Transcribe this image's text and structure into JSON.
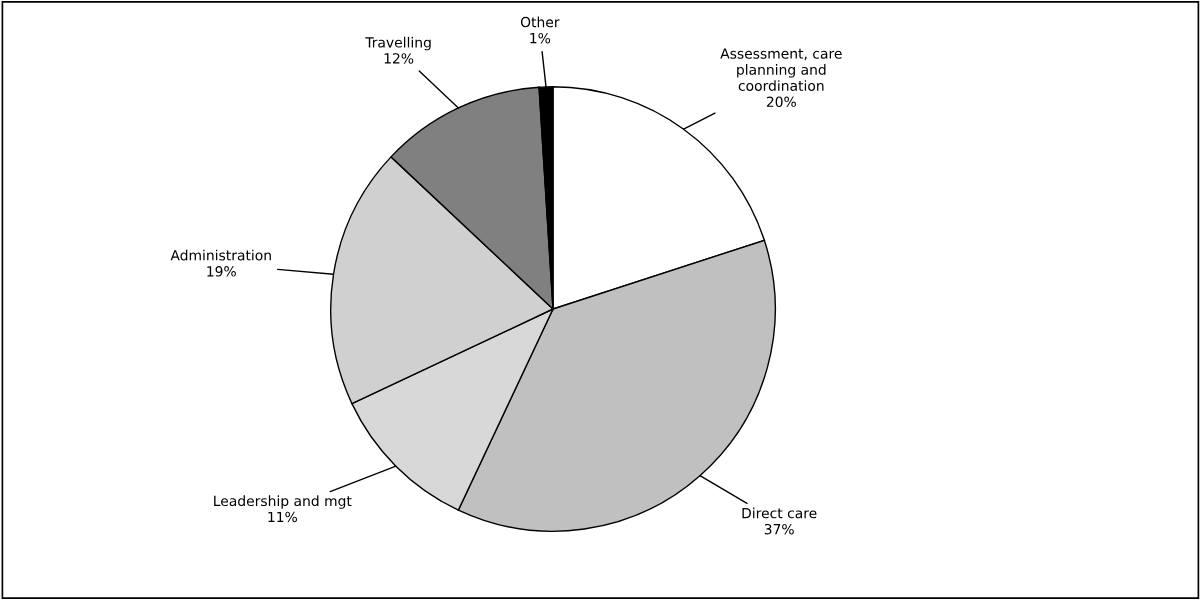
{
  "chart_data": {
    "type": "pie",
    "categories": [
      "Assessment, care\nplanning and\ncoordination",
      "Direct care",
      "Leadership and mgt",
      "Administration",
      "Travelling",
      "Other"
    ],
    "values": [
      20,
      37,
      11,
      19,
      12,
      1
    ],
    "colors": [
      "#ffffff",
      "#c0c0c0",
      "#d8d8d8",
      "#d0d0d0",
      "#808080",
      "#000000"
    ],
    "value_labels": [
      "20%",
      "37%",
      "11%",
      "19%",
      "12%",
      "1%"
    ],
    "legend": false
  }
}
